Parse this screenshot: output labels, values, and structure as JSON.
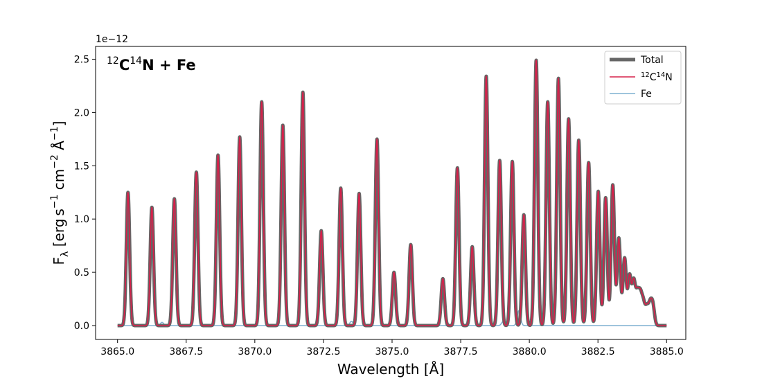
{
  "chart_data": {
    "type": "line",
    "title": {
      "main": "C",
      "iso1": "12",
      "iso2": "14",
      "rest_a": "N + Fe"
    },
    "offset_label": "1e−12",
    "xlabel": "Wavelength [Å]",
    "ylabel": {
      "base": "F",
      "sub": "λ",
      "open": " [erg s",
      "e1": "−1",
      "mid1": " cm",
      "e2": "−2",
      "mid2": " Å",
      "e3": "−1",
      "close": "]"
    },
    "xlim": [
      3864.2,
      3885.7
    ],
    "ylim": [
      -0.13,
      2.62
    ],
    "x_ticks": [
      3865.0,
      3867.5,
      3870.0,
      3872.5,
      3875.0,
      3877.5,
      3880.0,
      3882.5,
      3885.0
    ],
    "x_tick_labels": [
      "3865.0",
      "3867.5",
      "3870.0",
      "3872.5",
      "3875.0",
      "3877.5",
      "3880.0",
      "3882.5",
      "3885.0"
    ],
    "y_ticks": [
      0.0,
      0.5,
      1.0,
      1.5,
      2.0,
      2.5
    ],
    "y_tick_labels": [
      "0.0",
      "0.5",
      "1.0",
      "1.5",
      "2.0",
      "2.5"
    ],
    "line_width_angstrom": 0.06,
    "x_range": [
      3865.0,
      3885.0
    ],
    "series": [
      {
        "name": "Total",
        "color": "#666666",
        "lines": [
          [
            3865.38,
            1.25
          ],
          [
            3866.25,
            1.11
          ],
          [
            3867.07,
            1.19
          ],
          [
            3867.87,
            1.44
          ],
          [
            3868.66,
            1.6
          ],
          [
            3869.45,
            1.77
          ],
          [
            3870.25,
            2.1
          ],
          [
            3871.02,
            1.88
          ],
          [
            3871.75,
            2.19
          ],
          [
            3872.42,
            0.89
          ],
          [
            3873.13,
            1.29
          ],
          [
            3873.8,
            1.24
          ],
          [
            3874.45,
            1.75
          ],
          [
            3875.07,
            0.5
          ],
          [
            3875.68,
            0.76
          ],
          [
            3876.85,
            0.44
          ],
          [
            3877.38,
            1.48
          ],
          [
            3877.92,
            0.74
          ],
          [
            3878.43,
            2.34
          ],
          [
            3878.92,
            1.55
          ],
          [
            3879.38,
            1.54
          ],
          [
            3879.8,
            1.04
          ],
          [
            3880.25,
            2.49
          ],
          [
            3880.67,
            2.1
          ],
          [
            3881.06,
            2.32
          ],
          [
            3881.43,
            1.94
          ],
          [
            3881.8,
            1.74
          ],
          [
            3882.16,
            1.53
          ],
          [
            3882.51,
            1.26
          ],
          [
            3882.78,
            1.2
          ],
          [
            3883.04,
            1.32
          ],
          [
            3883.26,
            0.82
          ],
          [
            3883.47,
            0.63
          ],
          [
            3883.65,
            0.46
          ],
          [
            3883.8,
            0.4
          ],
          [
            3883.93,
            0.27
          ],
          [
            3884.04,
            0.26
          ],
          [
            3884.15,
            0.2
          ],
          [
            3884.28,
            0.16
          ],
          [
            3884.4,
            0.18
          ],
          [
            3884.5,
            0.18
          ]
        ]
      },
      {
        "name": "¹²C¹⁴N",
        "color": "#d6204a",
        "lines": [
          [
            3865.38,
            1.25
          ],
          [
            3866.25,
            1.11
          ],
          [
            3867.07,
            1.19
          ],
          [
            3867.87,
            1.44
          ],
          [
            3868.66,
            1.6
          ],
          [
            3869.45,
            1.77
          ],
          [
            3870.25,
            2.1
          ],
          [
            3871.02,
            1.88
          ],
          [
            3871.75,
            2.19
          ],
          [
            3872.42,
            0.89
          ],
          [
            3873.13,
            1.29
          ],
          [
            3873.8,
            1.24
          ],
          [
            3874.45,
            1.75
          ],
          [
            3875.07,
            0.5
          ],
          [
            3875.68,
            0.76
          ],
          [
            3876.85,
            0.44
          ],
          [
            3877.38,
            1.48
          ],
          [
            3877.92,
            0.74
          ],
          [
            3878.43,
            2.34
          ],
          [
            3878.92,
            1.55
          ],
          [
            3879.38,
            1.54
          ],
          [
            3879.8,
            1.04
          ],
          [
            3880.25,
            2.49
          ],
          [
            3880.67,
            2.1
          ],
          [
            3881.06,
            2.32
          ],
          [
            3881.43,
            1.94
          ],
          [
            3881.8,
            1.74
          ],
          [
            3882.16,
            1.53
          ],
          [
            3882.51,
            1.26
          ],
          [
            3882.78,
            1.2
          ],
          [
            3883.04,
            1.32
          ],
          [
            3883.26,
            0.82
          ],
          [
            3883.47,
            0.63
          ],
          [
            3883.65,
            0.46
          ],
          [
            3883.8,
            0.4
          ],
          [
            3883.93,
            0.27
          ],
          [
            3884.04,
            0.26
          ],
          [
            3884.15,
            0.2
          ],
          [
            3884.28,
            0.16
          ],
          [
            3884.4,
            0.18
          ],
          [
            3884.5,
            0.18
          ]
        ]
      },
      {
        "name": "Fe",
        "color": "#7fb0d1",
        "lines": [
          [
            3866.62,
            0.03
          ],
          [
            3873.52,
            0.04
          ],
          [
            3879.05,
            0.04
          ],
          [
            3879.62,
            0.14
          ]
        ]
      }
    ],
    "legend": {
      "position": "top-right",
      "entries": [
        {
          "label": "Total",
          "color": "#666666",
          "sup": [],
          "text": "Total"
        },
        {
          "label": "12C14N",
          "color": "#d6204a",
          "parts": [
            "12",
            "C",
            "14",
            "N"
          ]
        },
        {
          "label": "Fe",
          "color": "#7fb0d1",
          "text": "Fe"
        }
      ]
    },
    "grid": false
  }
}
